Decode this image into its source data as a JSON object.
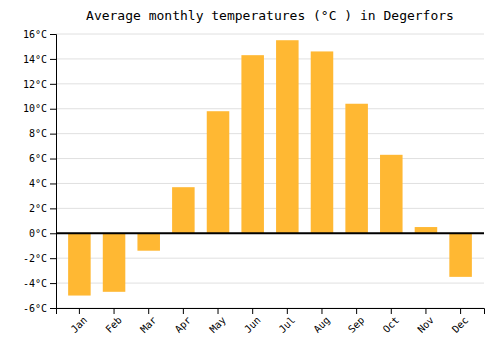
{
  "chart_data": {
    "type": "bar",
    "title": "Average monthly temperatures (°C ) in Degerfors",
    "categories": [
      "Jan",
      "Feb",
      "Mar",
      "Apr",
      "May",
      "Jun",
      "Jul",
      "Aug",
      "Sep",
      "Oct",
      "Nov",
      "Dec"
    ],
    "values": [
      -5.0,
      -4.7,
      -1.4,
      3.7,
      9.8,
      14.3,
      15.5,
      14.6,
      10.4,
      6.3,
      0.5,
      -3.5
    ],
    "color": "#FFB833",
    "ylim": [
      -6,
      16
    ],
    "yticks": [
      {
        "value": -6,
        "label": "-6°C"
      },
      {
        "value": -4,
        "label": "-4°C"
      },
      {
        "value": -2,
        "label": "-2°C"
      },
      {
        "value": 0,
        "label": "0°C"
      },
      {
        "value": 2,
        "label": "2°C"
      },
      {
        "value": 4,
        "label": "4°C"
      },
      {
        "value": 6,
        "label": "6°C"
      },
      {
        "value": 8,
        "label": "8°C"
      },
      {
        "value": 10,
        "label": "10°C"
      },
      {
        "value": 12,
        "label": "12°C"
      },
      {
        "value": 14,
        "label": "14°C"
      },
      {
        "value": 16,
        "label": "16°C"
      }
    ],
    "grid": true
  }
}
